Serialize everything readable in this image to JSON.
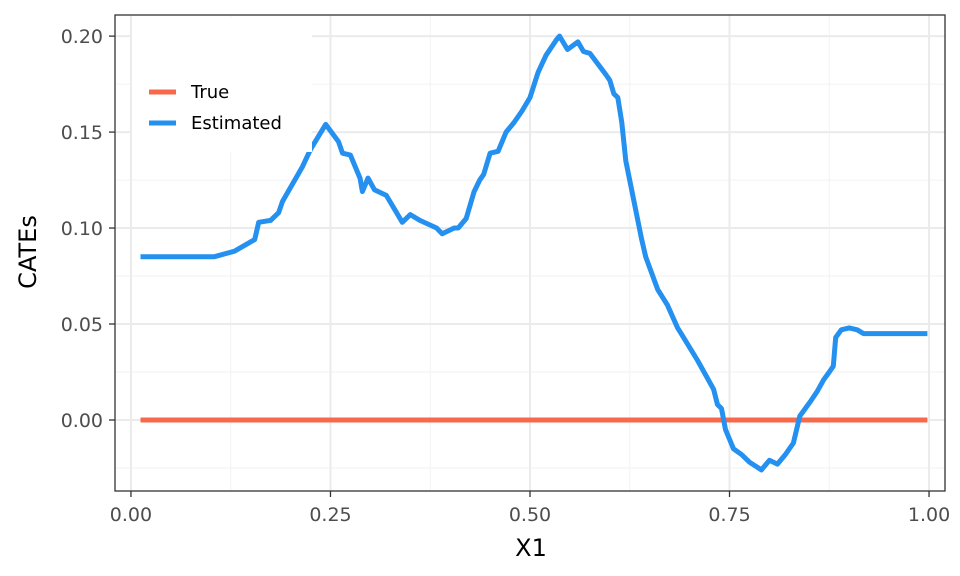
{
  "chart_data": {
    "type": "line",
    "xlabel": "X1",
    "ylabel": "CATEs",
    "xlim": [
      -0.02,
      1.02
    ],
    "ylim": [
      -0.037,
      0.211
    ],
    "x_ticks": [
      0.0,
      0.25,
      0.5,
      0.75,
      1.0
    ],
    "x_tick_labels": [
      "0.00",
      "0.25",
      "0.50",
      "0.75",
      "1.00"
    ],
    "y_ticks": [
      0.0,
      0.05,
      0.1,
      0.15,
      0.2
    ],
    "y_tick_labels": [
      "0.00",
      "0.05",
      "0.10",
      "0.15",
      "0.20"
    ],
    "grid": true,
    "legend_position": "top-left",
    "series": [
      {
        "name": "True",
        "color": "#F8694C",
        "x": [
          0.012,
          0.998
        ],
        "y": [
          0.0,
          0.0
        ]
      },
      {
        "name": "Estimated",
        "color": "#2490F0",
        "x": [
          0.012,
          0.104,
          0.13,
          0.155,
          0.16,
          0.175,
          0.185,
          0.19,
          0.215,
          0.225,
          0.244,
          0.26,
          0.265,
          0.275,
          0.287,
          0.29,
          0.297,
          0.305,
          0.32,
          0.34,
          0.35,
          0.362,
          0.383,
          0.39,
          0.405,
          0.41,
          0.42,
          0.43,
          0.437,
          0.442,
          0.45,
          0.46,
          0.47,
          0.48,
          0.49,
          0.5,
          0.51,
          0.52,
          0.533,
          0.537,
          0.547,
          0.56,
          0.567,
          0.575,
          0.595,
          0.6,
          0.605,
          0.61,
          0.615,
          0.62,
          0.64,
          0.645,
          0.66,
          0.672,
          0.685,
          0.688,
          0.71,
          0.73,
          0.735,
          0.74,
          0.745,
          0.755,
          0.765,
          0.775,
          0.79,
          0.8,
          0.81,
          0.82,
          0.83,
          0.838,
          0.845,
          0.852,
          0.86,
          0.868,
          0.875,
          0.88,
          0.883,
          0.89,
          0.9,
          0.91,
          0.918,
          0.998
        ],
        "y": [
          0.085,
          0.085,
          0.088,
          0.094,
          0.103,
          0.104,
          0.108,
          0.114,
          0.132,
          0.141,
          0.154,
          0.145,
          0.139,
          0.138,
          0.126,
          0.119,
          0.126,
          0.12,
          0.117,
          0.103,
          0.107,
          0.104,
          0.1,
          0.097,
          0.1,
          0.1,
          0.105,
          0.119,
          0.125,
          0.128,
          0.139,
          0.14,
          0.15,
          0.155,
          0.161,
          0.168,
          0.181,
          0.19,
          0.198,
          0.2,
          0.193,
          0.197,
          0.192,
          0.191,
          0.18,
          0.177,
          0.17,
          0.168,
          0.155,
          0.135,
          0.094,
          0.085,
          0.068,
          0.06,
          0.048,
          0.046,
          0.031,
          0.016,
          0.008,
          0.006,
          -0.005,
          -0.015,
          -0.018,
          -0.022,
          -0.026,
          -0.021,
          -0.023,
          -0.018,
          -0.012,
          0.002,
          0.006,
          0.01,
          0.015,
          0.021,
          0.025,
          0.028,
          0.043,
          0.047,
          0.048,
          0.047,
          0.045,
          0.045
        ]
      }
    ]
  }
}
